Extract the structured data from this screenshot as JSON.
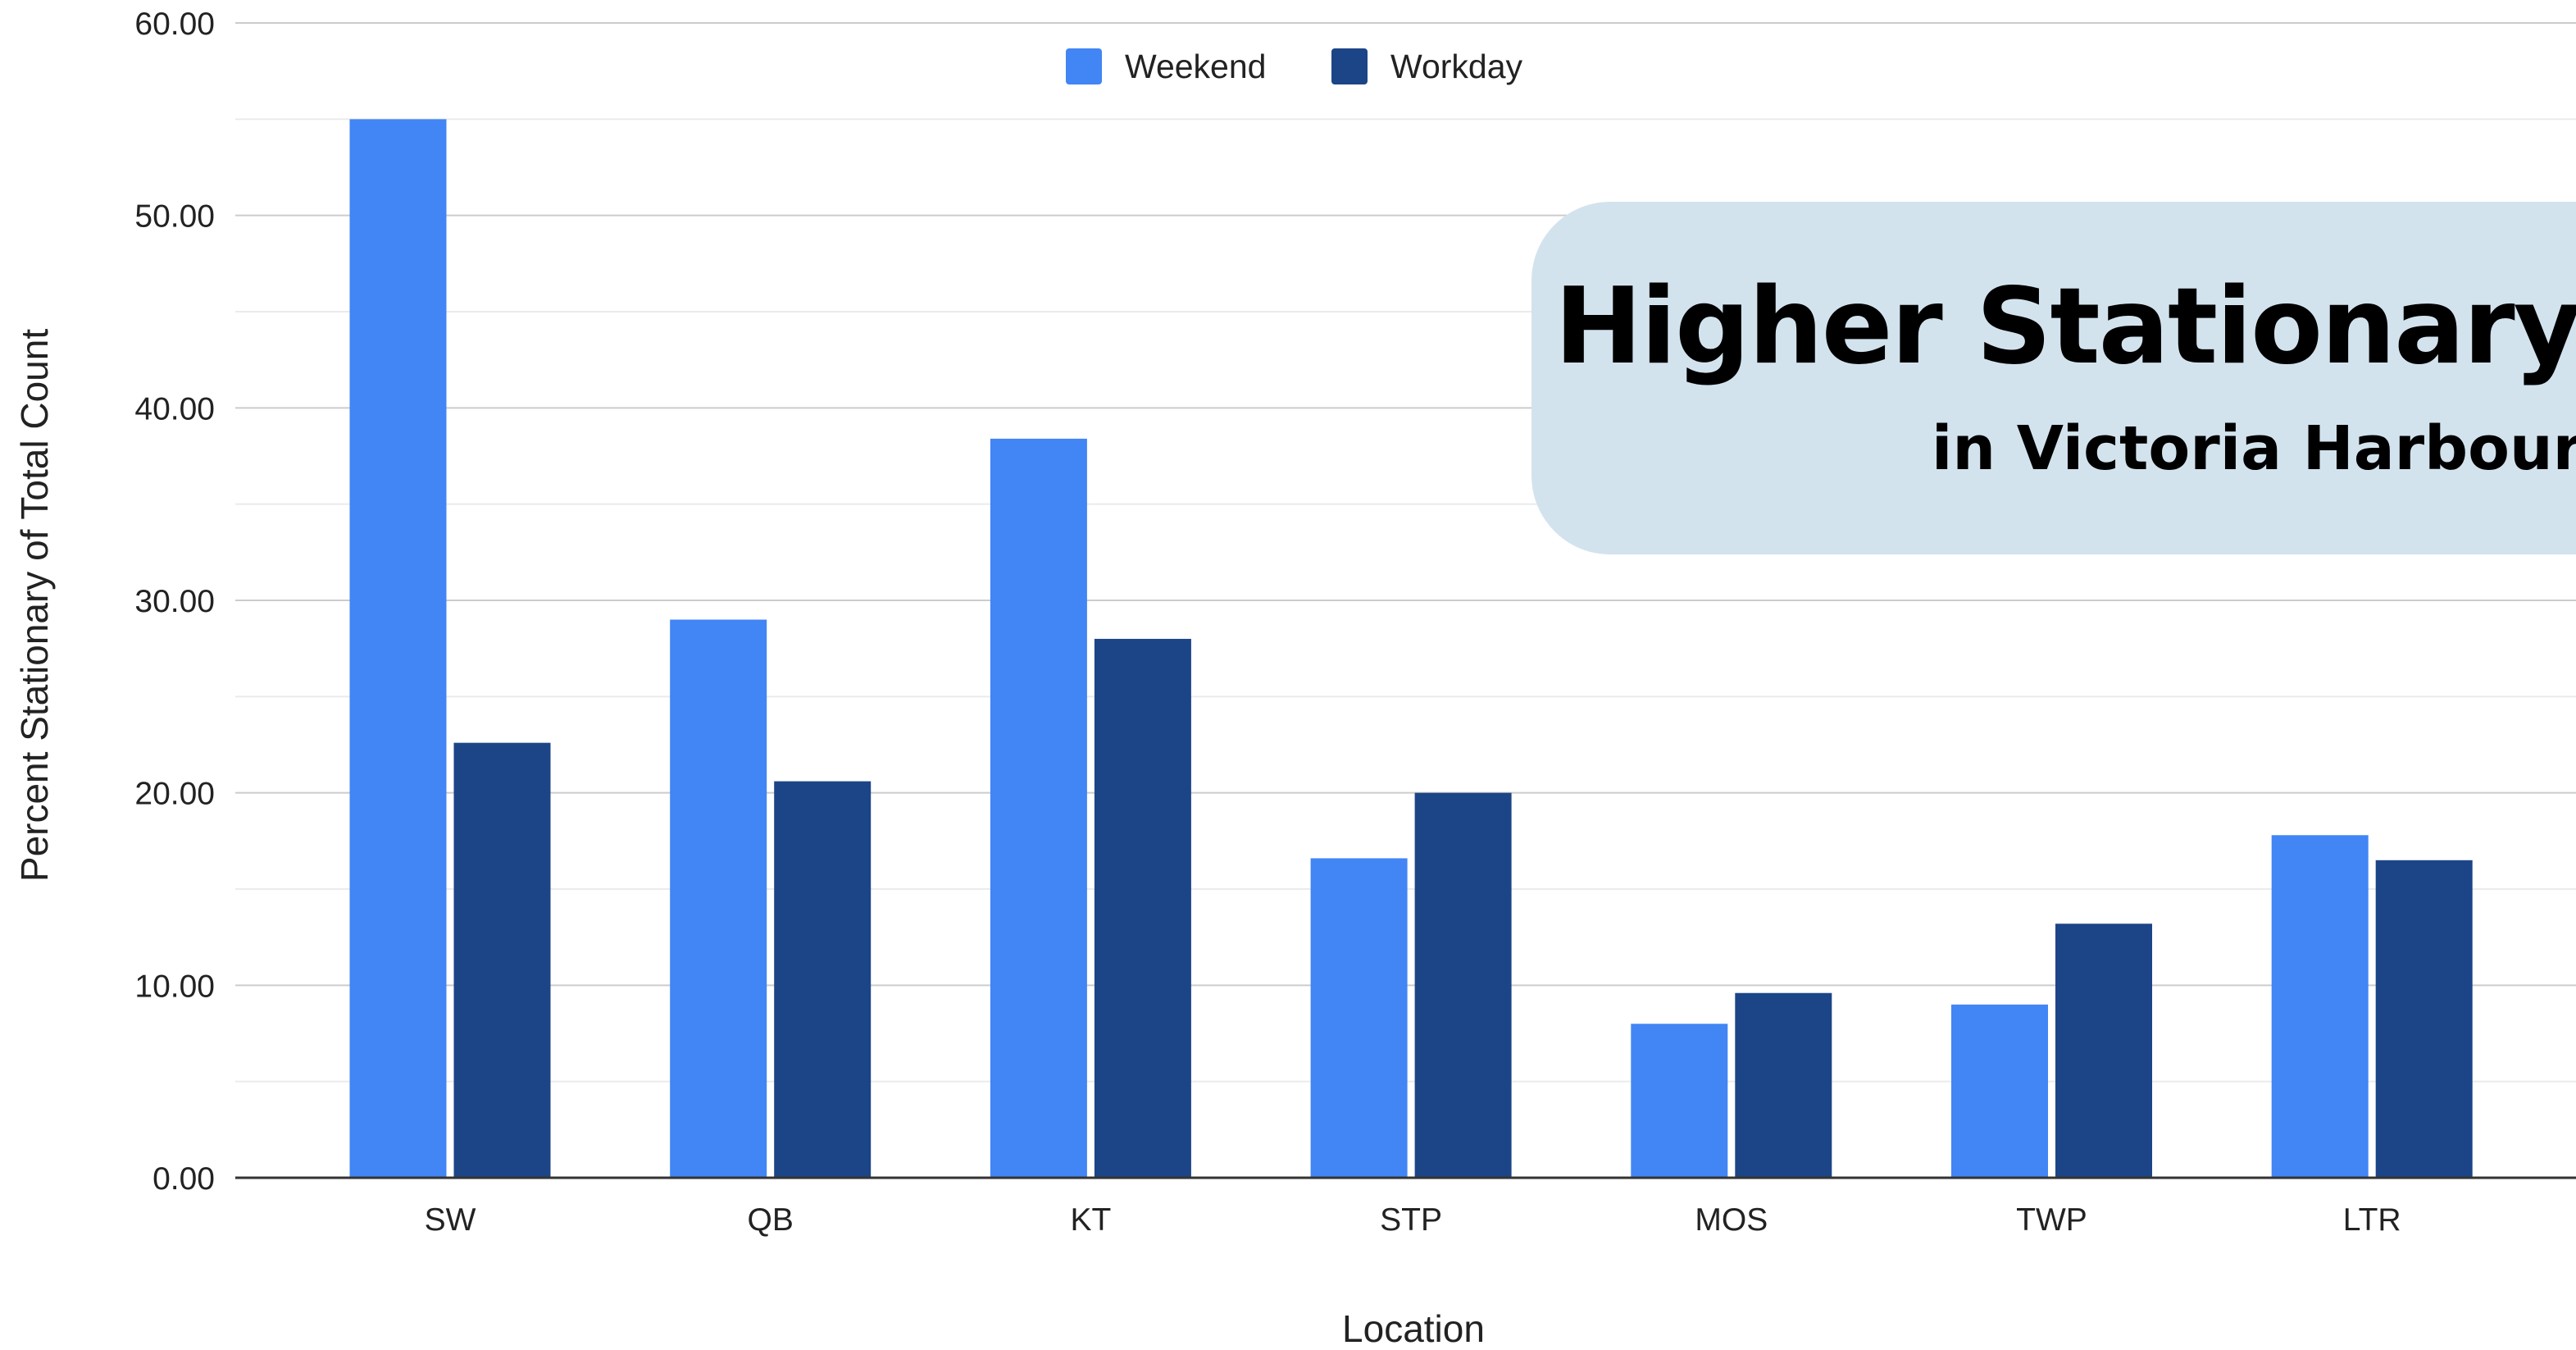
{
  "chart_data": {
    "type": "bar",
    "categories": [
      "SW",
      "QB",
      "KT",
      "STP",
      "MOS",
      "TWP",
      "LTR"
    ],
    "series": [
      {
        "name": "Weekend",
        "color": "#4285f4",
        "values": [
          55.0,
          29.0,
          38.4,
          16.6,
          8.0,
          9.0,
          17.8
        ]
      },
      {
        "name": "Workday",
        "color": "#1c4587",
        "values": [
          22.6,
          20.6,
          28.0,
          20.0,
          9.6,
          13.2,
          16.5
        ]
      }
    ],
    "ylim": [
      0,
      60
    ],
    "yticks": [
      "0.00",
      "10.00",
      "20.00",
      "30.00",
      "40.00",
      "50.00",
      "60.00"
    ],
    "ylabel": "Percent Stationary of Total Count",
    "xlabel": "Location",
    "legend": "top-center",
    "grid": true
  },
  "callout": {
    "title": "Higher Stationary",
    "subtitle": "in Victoria Harbour"
  }
}
